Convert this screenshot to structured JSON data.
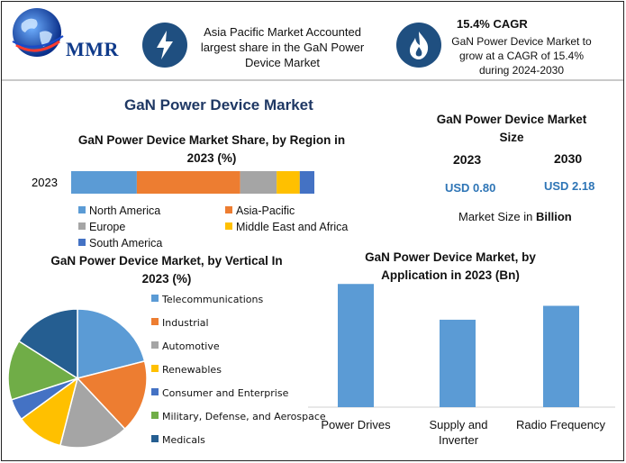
{
  "brand": {
    "logo_text": "MMR"
  },
  "highlights": {
    "region_text_lines": [
      "Asia Pacific Market Accounted",
      "largest share in the GaN Power",
      "Device Market"
    ],
    "cagr_title": "15.4% CAGR",
    "cagr_text_lines": [
      "GaN Power Device Market to",
      "grow at a CAGR of 15.4%",
      "during 2024-2030"
    ],
    "icons": [
      "lightning-icon",
      "flame-icon"
    ]
  },
  "main_title": "GaN Power Device Market",
  "market_size": {
    "title_lines": [
      "GaN Power Device Market",
      "Size"
    ],
    "years": [
      "2023",
      "2030"
    ],
    "values": [
      "USD 0.80",
      "USD 2.18"
    ],
    "unit_prefix": "Market Size in ",
    "unit_bold": "Billion"
  },
  "colors": {
    "north_america": "#5b9bd5",
    "asia_pacific": "#ed7d31",
    "europe": "#a5a5a5",
    "middle_east_africa": "#ffc000",
    "south_america": "#4472c4",
    "telecom": "#5b9bd5",
    "industrial": "#ed7d31",
    "automotive": "#a5a5a5",
    "renewables": "#ffc000",
    "consumer": "#4472c4",
    "military": "#70ad47",
    "medicals": "#255e91"
  },
  "chart_data": [
    {
      "type": "bar",
      "orientation": "horizontal-stacked",
      "title_lines": [
        "GaN Power Device Market Share, by Region in",
        "2023 (%)"
      ],
      "categories": [
        "2023"
      ],
      "series": [
        {
          "name": "North America",
          "values": [
            27
          ]
        },
        {
          "name": "Asia-Pacific",
          "values": [
            42.5
          ]
        },
        {
          "name": "Europe",
          "values": [
            15
          ]
        },
        {
          "name": "Middle East and Africa",
          "values": [
            9.5
          ]
        },
        {
          "name": "South America",
          "values": [
            6
          ]
        }
      ],
      "legend_position": "bottom"
    },
    {
      "type": "pie",
      "title_lines": [
        "GaN Power Device Market, by Vertical In",
        "2023 (%)"
      ],
      "labels": [
        "Telecommunications",
        "Industrial",
        "Automotive",
        "Renewables",
        "Consumer and Enterprise",
        "Military, Defense, and Aerospace",
        "Medicals"
      ],
      "values": [
        21,
        17,
        16,
        11,
        5,
        14,
        16
      ],
      "legend_position": "right"
    },
    {
      "type": "bar",
      "title_lines": [
        "GaN Power Device Market, by",
        "Application in 2023 (Bn)"
      ],
      "categories": [
        [
          "Power Drives"
        ],
        [
          "Supply and",
          "Inverter"
        ],
        [
          "Radio Frequency"
        ]
      ],
      "values": [
        0.31,
        0.22,
        0.255
      ],
      "ylim": [
        0,
        0.34
      ],
      "grid": false
    }
  ]
}
